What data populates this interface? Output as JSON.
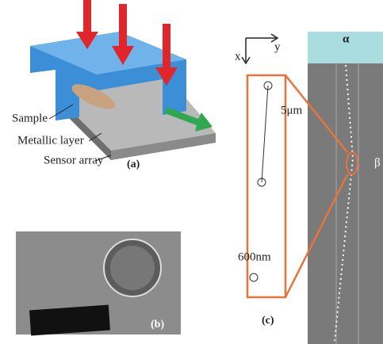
{
  "panel_a": {
    "labels": [
      "Sample",
      "Metallic layer",
      "Sensor array"
    ],
    "tag": "(a)"
  },
  "panel_b": {
    "tag": "(b)"
  },
  "panel_c": {
    "axes": [
      "x",
      "y"
    ],
    "scale_long": "5μm",
    "scale_short": "600nm",
    "markers": [
      "α",
      "β"
    ],
    "tag": "(c)"
  }
}
